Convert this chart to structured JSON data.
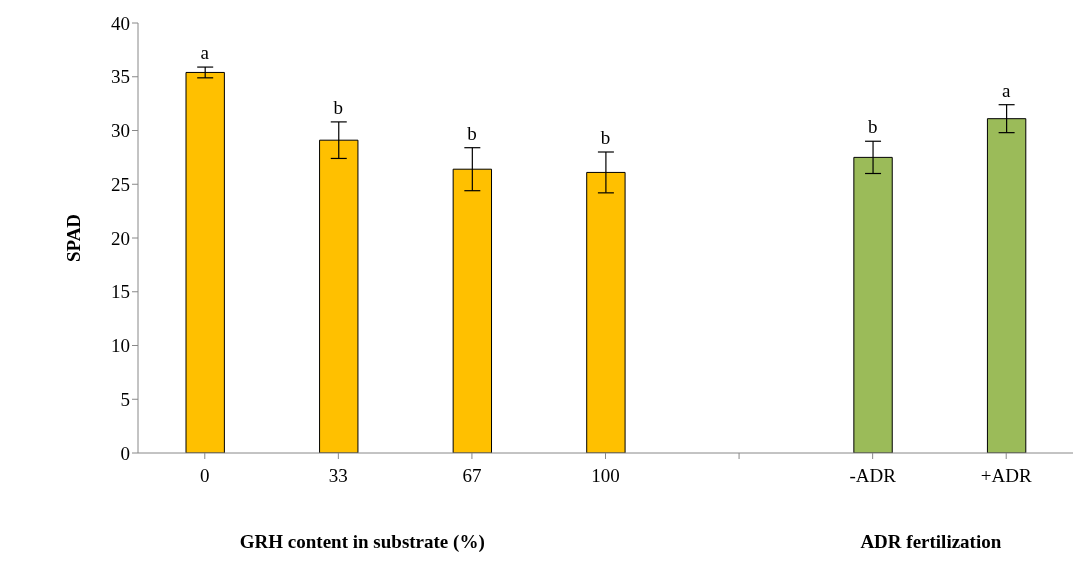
{
  "chart_data": {
    "type": "bar",
    "ylabel": "SPAD",
    "xlabel": "GRH content in substrate (%)",
    "categories": [
      "0",
      "33",
      "67",
      "100",
      null,
      "-ADR",
      "+ADR"
    ],
    "values": [
      35.4,
      29.1,
      26.4,
      26.1,
      null,
      27.5,
      31.1
    ],
    "errors": [
      0.5,
      1.7,
      2.0,
      1.9,
      null,
      1.5,
      1.3
    ],
    "colors": [
      "#ffc000",
      "#ffc000",
      "#ffc000",
      "#ffc000",
      "#ffc000",
      "#9bbb59",
      "#9bbb59"
    ],
    "ylim": [
      0,
      40
    ],
    "yticks": [
      0,
      5,
      10,
      15,
      20,
      25,
      30,
      35,
      40
    ],
    "grid": false,
    "legend": false,
    "annotations": [
      {
        "text": "a",
        "x": "0",
        "y": 35.4
      },
      {
        "text": "b",
        "x": "33",
        "y": 29.1
      },
      {
        "text": "b",
        "x": "67",
        "y": 26.4
      },
      {
        "text": "b",
        "x": "100",
        "y": 26.1
      },
      {
        "text": "b",
        "x": "-ADR",
        "y": 27.5
      },
      {
        "text": "a",
        "x": "+ADR",
        "y": 31.1
      },
      "ADR fertilization"
    ]
  }
}
